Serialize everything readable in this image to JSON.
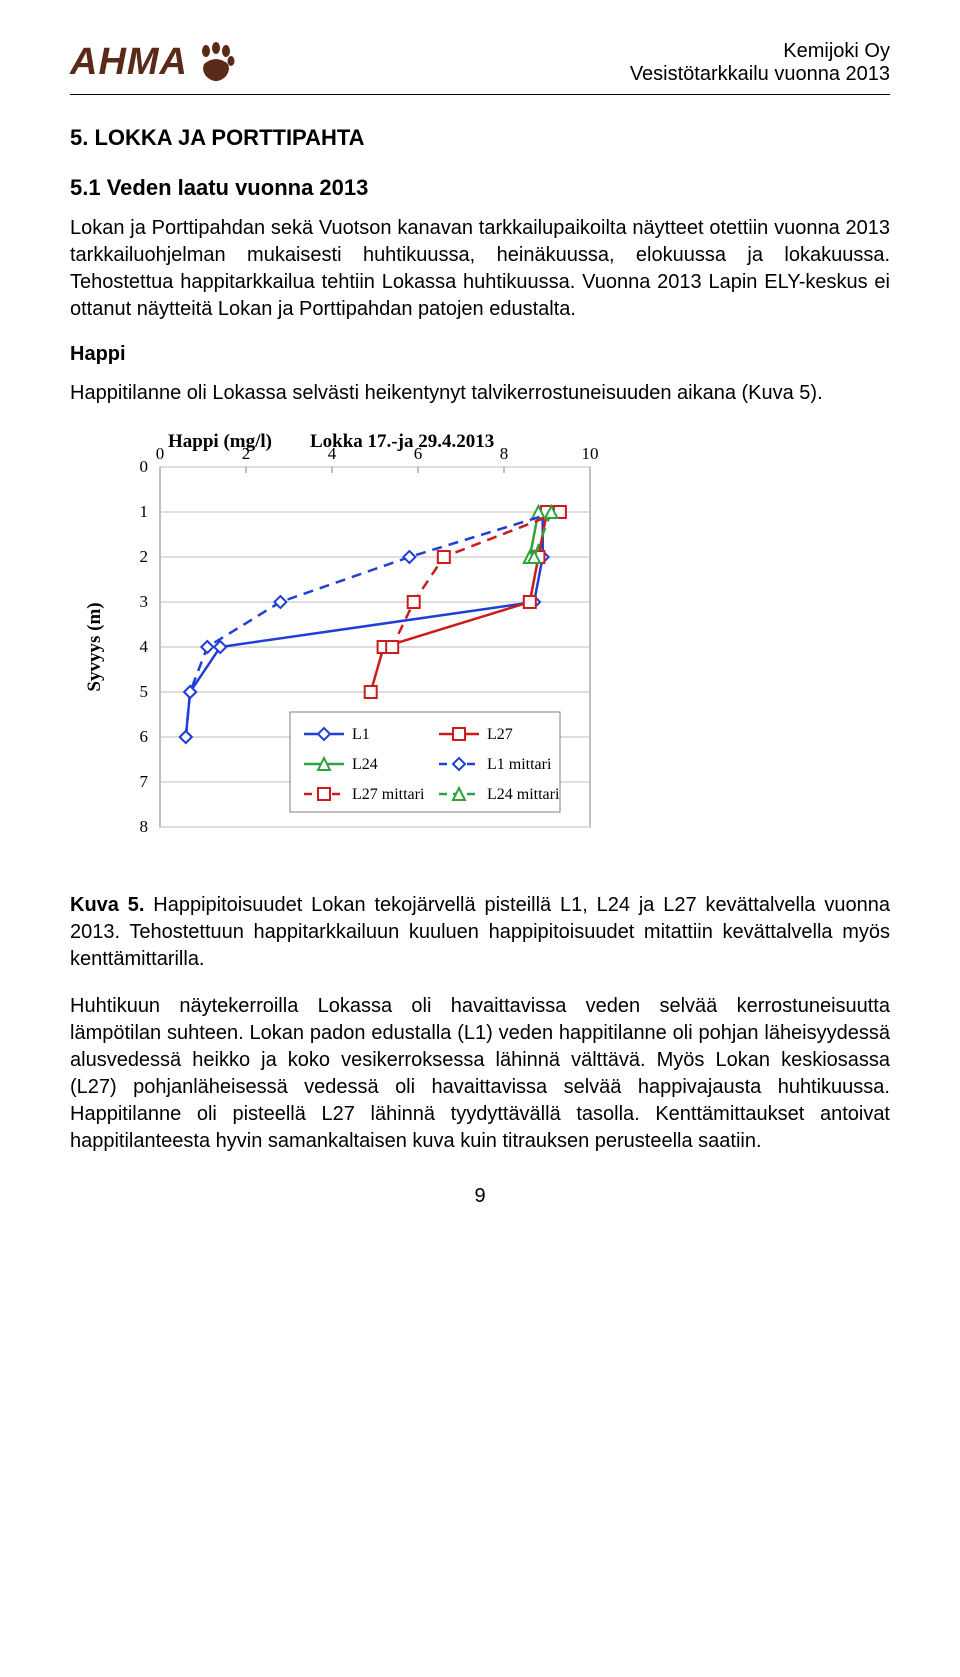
{
  "header": {
    "logo_text": "AHMA",
    "logo_color": "#5a2a18",
    "right_line1": "Kemijoki Oy",
    "right_line2": "Vesistötarkkailu vuonna 2013"
  },
  "section_num_title": "5.   LOKKA JA PORTTIPAHTA",
  "subsection_title": "5.1 Veden laatu vuonna 2013",
  "para1": "Lokan ja Porttipahdan sekä Vuotson kanavan tarkkailupaikoilta näytteet otettiin vuonna 2013 tarkkailuohjelman mukaisesti huhtikuussa, heinäkuussa, elokuussa ja lokakuussa. Tehostettua happitarkkailua tehtiin Lokassa huhtikuussa. Vuonna 2013 Lapin ELY-keskus ei ottanut näytteitä Lokan ja Porttipahdan patojen edustalta.",
  "happi_heading": "Happi",
  "para2": "Happitilanne oli Lokassa selvästi heikentynyt talvikerrostuneisuuden aikana (Kuva 5).",
  "chart": {
    "type": "line",
    "title": "Lokka 17.-ja 29.4.2013",
    "ylabel_left": "Happi (mg/l)",
    "axis_label_side": "Syvyys (m)",
    "x_ticks": [
      0,
      2,
      4,
      6,
      8,
      10
    ],
    "y_ticks": [
      0,
      1,
      2,
      3,
      4,
      5,
      6,
      7,
      8
    ],
    "xlim": [
      0,
      10
    ],
    "ylim": [
      8,
      0
    ],
    "background": "#ffffff",
    "grid_color": "#bdbdbd",
    "axis_color": "#808080",
    "main_border_color": "#808080",
    "legend_border": "#808080",
    "series": {
      "L1": {
        "color": "#1f3fd6",
        "marker": "diamond",
        "dash": "none",
        "width": 2.5,
        "pts": [
          [
            8.9,
            1
          ],
          [
            8.9,
            2
          ],
          [
            8.7,
            3
          ],
          [
            1.4,
            4
          ],
          [
            0.7,
            5
          ],
          [
            0.6,
            6
          ]
        ]
      },
      "L27": {
        "color": "#cc1b1b",
        "marker": "square",
        "dash": "none",
        "width": 2.5,
        "pts": [
          [
            9.0,
            1
          ],
          [
            8.8,
            2
          ],
          [
            8.6,
            3
          ],
          [
            5.2,
            4
          ],
          [
            4.9,
            5
          ]
        ]
      },
      "L24": {
        "color": "#2fa23e",
        "marker": "triangle",
        "dash": "none",
        "width": 2.5,
        "pts": [
          [
            8.8,
            1
          ],
          [
            8.6,
            2
          ]
        ]
      },
      "L1_mittari": {
        "color": "#1f3fd6",
        "marker": "diamond",
        "dash": "dash",
        "width": 2.5,
        "pts": [
          [
            9.2,
            1
          ],
          [
            5.8,
            2
          ],
          [
            2.8,
            3
          ],
          [
            1.1,
            4
          ],
          [
            0.7,
            5
          ],
          [
            0.6,
            6
          ]
        ]
      },
      "L27_mittari": {
        "color": "#cc1b1b",
        "marker": "square",
        "dash": "dash",
        "width": 2.5,
        "pts": [
          [
            9.3,
            1
          ],
          [
            6.6,
            2
          ],
          [
            5.9,
            3
          ],
          [
            5.4,
            4
          ]
        ]
      },
      "L24_mittari": {
        "color": "#2fa23e",
        "marker": "triangle",
        "dash": "dash",
        "width": 2.5,
        "pts": [
          [
            9.1,
            1
          ],
          [
            8.7,
            2
          ]
        ]
      }
    },
    "legend_items": [
      {
        "key": "L1",
        "label": "L1"
      },
      {
        "key": "L27",
        "label": "L27"
      },
      {
        "key": "L24",
        "label": "L24"
      },
      {
        "key": "L1_mittari",
        "label": "L1 mittari"
      },
      {
        "key": "L27_mittari",
        "label": "L27 mittari"
      },
      {
        "key": "L24_mittari",
        "label": "L24 mittari"
      }
    ]
  },
  "caption_lead": "Kuva 5.",
  "caption_text": " Happipitoisuudet Lokan tekojärvellä pisteillä L1, L24 ja L27 kevättalvella vuonna 2013. Tehostettuun happitarkkailuun kuuluen happipitoisuudet mitattiin kevättalvella myös kenttämittarilla.",
  "para3": "Huhtikuun näytekerroilla Lokassa oli havaittavissa veden selvää kerrostuneisuutta lämpötilan suhteen. Lokan padon edustalla (L1) veden happitilanne oli pohjan läheisyydessä alusvedessä heikko ja koko vesikerroksessa lähinnä välttävä. Myös Lokan keskiosassa (L27) pohjanläheisessä vedessä oli havaittavissa selvää happivajausta huhtikuussa. Happitilanne oli pisteellä L27 lähinnä tyydyttävällä tasolla. Kenttämittaukset antoivat happitilanteesta hyvin samankaltaisen kuva kuin titrauksen perusteella saatiin.",
  "page_number": "9"
}
